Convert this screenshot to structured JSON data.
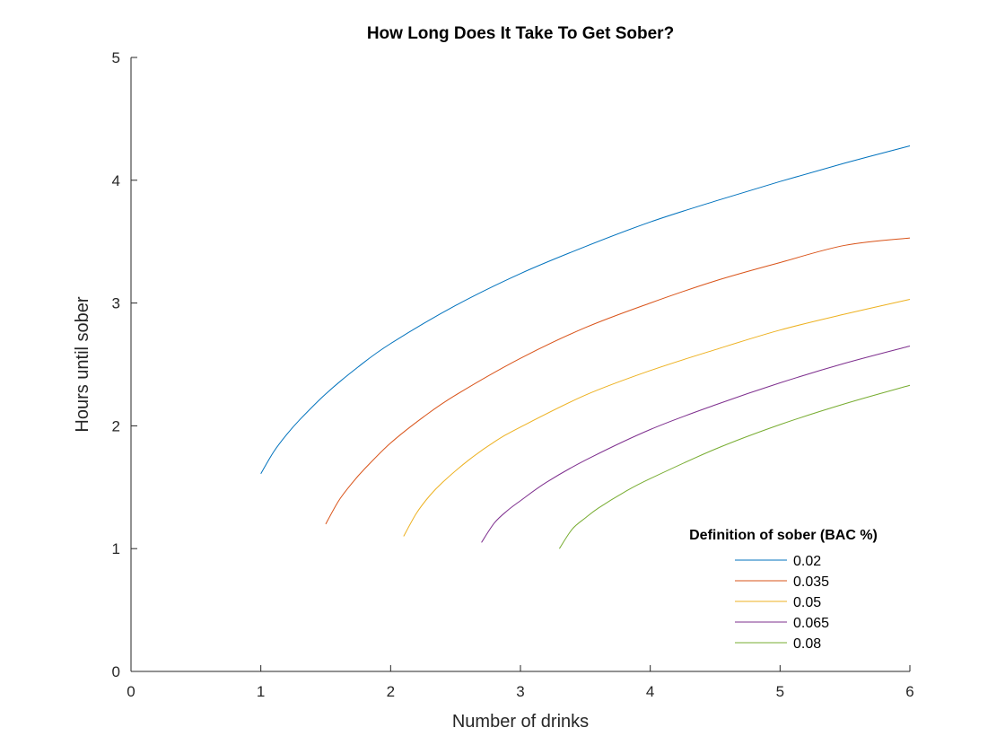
{
  "chart_data": {
    "type": "line",
    "title": "How Long Does It Take To Get Sober?",
    "xlabel": "Number of drinks",
    "ylabel": "Hours until sober",
    "xlim": [
      0,
      6
    ],
    "ylim": [
      0,
      5
    ],
    "xticks": [
      "0",
      "1",
      "2",
      "3",
      "4",
      "5",
      "6"
    ],
    "yticks": [
      "0",
      "1",
      "2",
      "3",
      "4",
      "5"
    ],
    "grid": false,
    "legend": {
      "title": "Definition of sober (BAC %)",
      "placement": "bottom-right"
    },
    "series": [
      {
        "name": "0.02",
        "color": "#0072BD",
        "x": [
          1.0,
          1.1,
          1.2,
          1.3,
          1.5,
          1.75,
          2.0,
          2.5,
          3.0,
          3.5,
          4.0,
          4.5,
          5.0,
          5.5,
          6.0
        ],
        "y": [
          1.61,
          1.79,
          1.93,
          2.05,
          2.26,
          2.48,
          2.67,
          2.98,
          3.24,
          3.46,
          3.66,
          3.83,
          3.99,
          4.14,
          4.28
        ]
      },
      {
        "name": "0.035",
        "color": "#D95319",
        "x": [
          1.5,
          1.6,
          1.7,
          1.8,
          2.0,
          2.25,
          2.5,
          3.0,
          3.5,
          4.0,
          4.5,
          5.0,
          5.5,
          6.0
        ],
        "y": [
          1.2,
          1.39,
          1.53,
          1.65,
          1.86,
          2.07,
          2.25,
          2.55,
          2.8,
          3.0,
          3.18,
          3.33,
          3.47,
          3.53
        ]
      },
      {
        "name": "0.05",
        "color": "#EDB120",
        "x": [
          2.1,
          2.2,
          2.3,
          2.4,
          2.6,
          2.8,
          3.0,
          3.5,
          4.0,
          4.5,
          5.0,
          5.5,
          6.0
        ],
        "y": [
          1.1,
          1.29,
          1.43,
          1.54,
          1.72,
          1.87,
          1.99,
          2.25,
          2.45,
          2.62,
          2.78,
          2.91,
          3.03
        ]
      },
      {
        "name": "0.065",
        "color": "#7E2F8E",
        "x": [
          2.7,
          2.8,
          2.9,
          3.0,
          3.2,
          3.5,
          4.0,
          4.5,
          5.0,
          5.5,
          6.0
        ],
        "y": [
          1.05,
          1.21,
          1.31,
          1.39,
          1.54,
          1.72,
          1.97,
          2.17,
          2.35,
          2.51,
          2.65
        ]
      },
      {
        "name": "0.08",
        "color": "#77AC30",
        "x": [
          3.3,
          3.4,
          3.5,
          3.6,
          3.8,
          4.0,
          4.5,
          5.0,
          5.5,
          6.0
        ],
        "y": [
          1.0,
          1.16,
          1.25,
          1.33,
          1.46,
          1.57,
          1.81,
          2.01,
          2.18,
          2.33
        ]
      }
    ]
  }
}
